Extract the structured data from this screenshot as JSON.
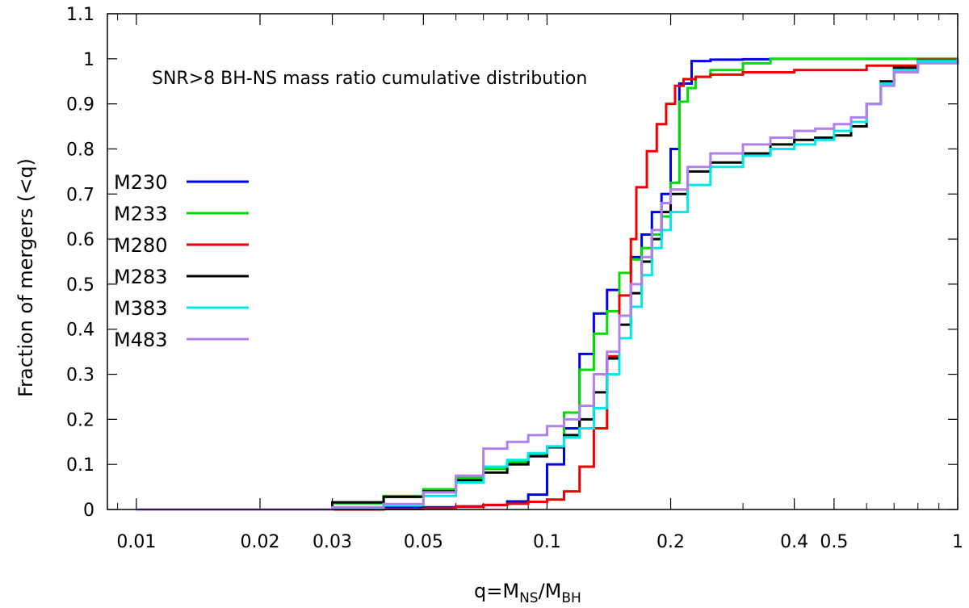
{
  "chart_data": {
    "type": "line",
    "title": "SNR>8 BH-NS mass ratio cumulative distribution",
    "xlabel": {
      "base": "q=M",
      "sub1": "NS",
      "mid": "/M",
      "sub2": "BH"
    },
    "ylabel": "Fraction of mergers (<q)",
    "xscale": "log",
    "xlim": [
      0.0085,
      1.0
    ],
    "ylim": [
      0,
      1.1
    ],
    "xticks": [
      {
        "value": 0.01,
        "label": "0.01"
      },
      {
        "value": 0.02,
        "label": "0.02"
      },
      {
        "value": 0.03,
        "label": "0.03"
      },
      {
        "value": 0.05,
        "label": "0.05"
      },
      {
        "value": 0.1,
        "label": "0.1"
      },
      {
        "value": 0.2,
        "label": "0.2"
      },
      {
        "value": 0.4,
        "label": "0.4"
      },
      {
        "value": 0.5,
        "label": "0.5"
      },
      {
        "value": 1,
        "label": "1"
      }
    ],
    "yticks": [
      {
        "value": 0,
        "label": "0"
      },
      {
        "value": 0.1,
        "label": "0.1"
      },
      {
        "value": 0.2,
        "label": "0.2"
      },
      {
        "value": 0.3,
        "label": "0.3"
      },
      {
        "value": 0.4,
        "label": "0.4"
      },
      {
        "value": 0.5,
        "label": "0.5"
      },
      {
        "value": 0.6,
        "label": "0.6"
      },
      {
        "value": 0.7,
        "label": "0.7"
      },
      {
        "value": 0.8,
        "label": "0.8"
      },
      {
        "value": 0.9,
        "label": "0.9"
      },
      {
        "value": 1,
        "label": "1"
      },
      {
        "value": 1.1,
        "label": "1.1"
      }
    ],
    "grid": false,
    "legend_position": "left",
    "series": [
      {
        "name": "M230",
        "color": "#0000ee",
        "points": [
          [
            0.01,
            0
          ],
          [
            0.028,
            0
          ],
          [
            0.03,
            0.003
          ],
          [
            0.04,
            0.004
          ],
          [
            0.05,
            0.005
          ],
          [
            0.06,
            0.007
          ],
          [
            0.07,
            0.01
          ],
          [
            0.08,
            0.018
          ],
          [
            0.09,
            0.033
          ],
          [
            0.1,
            0.1
          ],
          [
            0.11,
            0.18
          ],
          [
            0.12,
            0.345
          ],
          [
            0.13,
            0.435
          ],
          [
            0.14,
            0.487
          ],
          [
            0.15,
            0.525
          ],
          [
            0.16,
            0.56
          ],
          [
            0.17,
            0.61
          ],
          [
            0.18,
            0.66
          ],
          [
            0.19,
            0.7
          ],
          [
            0.2,
            0.8
          ],
          [
            0.21,
            0.945
          ],
          [
            0.225,
            0.995
          ],
          [
            0.25,
            0.998
          ],
          [
            0.3,
            0.999
          ],
          [
            0.35,
            1.0
          ],
          [
            1.0,
            1.0
          ]
        ]
      },
      {
        "name": "M233",
        "color": "#00dd00",
        "points": [
          [
            0.01,
            0
          ],
          [
            0.028,
            0
          ],
          [
            0.03,
            0.014
          ],
          [
            0.04,
            0.03
          ],
          [
            0.05,
            0.045
          ],
          [
            0.06,
            0.07
          ],
          [
            0.07,
            0.09
          ],
          [
            0.08,
            0.105
          ],
          [
            0.09,
            0.12
          ],
          [
            0.1,
            0.14
          ],
          [
            0.11,
            0.215
          ],
          [
            0.12,
            0.31
          ],
          [
            0.13,
            0.39
          ],
          [
            0.14,
            0.44
          ],
          [
            0.15,
            0.525
          ],
          [
            0.16,
            0.555
          ],
          [
            0.17,
            0.58
          ],
          [
            0.18,
            0.61
          ],
          [
            0.19,
            0.65
          ],
          [
            0.2,
            0.725
          ],
          [
            0.21,
            0.905
          ],
          [
            0.22,
            0.935
          ],
          [
            0.23,
            0.96
          ],
          [
            0.25,
            0.975
          ],
          [
            0.3,
            0.99
          ],
          [
            0.35,
            1.0
          ],
          [
            1.0,
            1.0
          ]
        ]
      },
      {
        "name": "M280",
        "color": "#ee0000",
        "points": [
          [
            0.01,
            0
          ],
          [
            0.03,
            0
          ],
          [
            0.04,
            0.001
          ],
          [
            0.05,
            0.002
          ],
          [
            0.06,
            0.006
          ],
          [
            0.07,
            0.01
          ],
          [
            0.08,
            0.013
          ],
          [
            0.09,
            0.017
          ],
          [
            0.1,
            0.022
          ],
          [
            0.11,
            0.04
          ],
          [
            0.12,
            0.095
          ],
          [
            0.13,
            0.18
          ],
          [
            0.14,
            0.34
          ],
          [
            0.15,
            0.475
          ],
          [
            0.16,
            0.6
          ],
          [
            0.165,
            0.715
          ],
          [
            0.175,
            0.795
          ],
          [
            0.185,
            0.855
          ],
          [
            0.195,
            0.9
          ],
          [
            0.205,
            0.94
          ],
          [
            0.215,
            0.955
          ],
          [
            0.23,
            0.96
          ],
          [
            0.25,
            0.965
          ],
          [
            0.3,
            0.97
          ],
          [
            0.4,
            0.975
          ],
          [
            0.6,
            0.985
          ],
          [
            0.8,
            0.998
          ],
          [
            1.0,
            1.0
          ]
        ]
      },
      {
        "name": "M283",
        "color": "#000000",
        "points": [
          [
            0.01,
            0
          ],
          [
            0.028,
            0
          ],
          [
            0.03,
            0.016
          ],
          [
            0.04,
            0.028
          ],
          [
            0.05,
            0.04
          ],
          [
            0.06,
            0.065
          ],
          [
            0.07,
            0.082
          ],
          [
            0.08,
            0.1
          ],
          [
            0.09,
            0.118
          ],
          [
            0.1,
            0.138
          ],
          [
            0.11,
            0.165
          ],
          [
            0.12,
            0.2
          ],
          [
            0.13,
            0.26
          ],
          [
            0.14,
            0.335
          ],
          [
            0.15,
            0.41
          ],
          [
            0.16,
            0.48
          ],
          [
            0.17,
            0.55
          ],
          [
            0.18,
            0.6
          ],
          [
            0.19,
            0.66
          ],
          [
            0.2,
            0.7
          ],
          [
            0.22,
            0.75
          ],
          [
            0.25,
            0.77
          ],
          [
            0.3,
            0.79
          ],
          [
            0.35,
            0.81
          ],
          [
            0.4,
            0.82
          ],
          [
            0.45,
            0.825
          ],
          [
            0.5,
            0.83
          ],
          [
            0.55,
            0.85
          ],
          [
            0.6,
            0.9
          ],
          [
            0.65,
            0.95
          ],
          [
            0.7,
            0.98
          ],
          [
            0.8,
            0.995
          ],
          [
            1.0,
            1.0
          ]
        ]
      },
      {
        "name": "M383",
        "color": "#00e8e8",
        "points": [
          [
            0.01,
            0
          ],
          [
            0.028,
            0
          ],
          [
            0.03,
            0.003
          ],
          [
            0.04,
            0.01
          ],
          [
            0.05,
            0.03
          ],
          [
            0.06,
            0.06
          ],
          [
            0.07,
            0.095
          ],
          [
            0.08,
            0.11
          ],
          [
            0.09,
            0.125
          ],
          [
            0.1,
            0.14
          ],
          [
            0.11,
            0.16
          ],
          [
            0.12,
            0.18
          ],
          [
            0.13,
            0.225
          ],
          [
            0.14,
            0.3
          ],
          [
            0.15,
            0.38
          ],
          [
            0.16,
            0.45
          ],
          [
            0.17,
            0.52
          ],
          [
            0.18,
            0.58
          ],
          [
            0.19,
            0.62
          ],
          [
            0.2,
            0.66
          ],
          [
            0.22,
            0.72
          ],
          [
            0.25,
            0.76
          ],
          [
            0.3,
            0.785
          ],
          [
            0.35,
            0.8
          ],
          [
            0.4,
            0.81
          ],
          [
            0.45,
            0.82
          ],
          [
            0.5,
            0.84
          ],
          [
            0.55,
            0.86
          ],
          [
            0.6,
            0.9
          ],
          [
            0.65,
            0.945
          ],
          [
            0.7,
            0.975
          ],
          [
            0.8,
            0.995
          ],
          [
            1.0,
            1.0
          ]
        ]
      },
      {
        "name": "M483",
        "color": "#b080ee",
        "points": [
          [
            0.01,
            0
          ],
          [
            0.02,
            0
          ],
          [
            0.03,
            0.005
          ],
          [
            0.04,
            0.012
          ],
          [
            0.05,
            0.038
          ],
          [
            0.06,
            0.075
          ],
          [
            0.07,
            0.135
          ],
          [
            0.08,
            0.15
          ],
          [
            0.09,
            0.165
          ],
          [
            0.1,
            0.185
          ],
          [
            0.11,
            0.2
          ],
          [
            0.12,
            0.23
          ],
          [
            0.13,
            0.3
          ],
          [
            0.14,
            0.35
          ],
          [
            0.15,
            0.43
          ],
          [
            0.16,
            0.5
          ],
          [
            0.17,
            0.56
          ],
          [
            0.18,
            0.62
          ],
          [
            0.19,
            0.68
          ],
          [
            0.2,
            0.71
          ],
          [
            0.22,
            0.76
          ],
          [
            0.25,
            0.79
          ],
          [
            0.3,
            0.81
          ],
          [
            0.35,
            0.825
          ],
          [
            0.4,
            0.84
          ],
          [
            0.45,
            0.845
          ],
          [
            0.5,
            0.855
          ],
          [
            0.55,
            0.87
          ],
          [
            0.6,
            0.9
          ],
          [
            0.65,
            0.94
          ],
          [
            0.7,
            0.97
          ],
          [
            0.8,
            0.99
          ],
          [
            1.0,
            1.0
          ]
        ]
      }
    ]
  }
}
